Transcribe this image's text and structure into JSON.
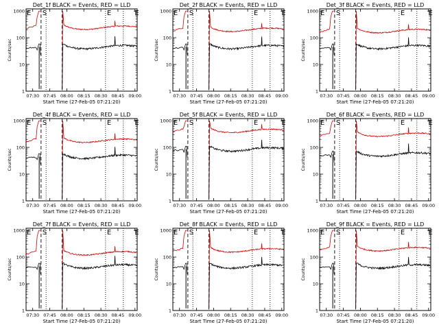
{
  "chart_data": [
    {
      "type": "line",
      "title": "Det_1f BLACK = Events, RED = LLD",
      "ylabel": "Counts/sec",
      "xlabel": "Start Time (27-Feb-05 07:21:20)",
      "x_ticks": [
        "07:30",
        "07:45",
        "08:00",
        "08:15",
        "08:30",
        "08:45",
        "09:00"
      ],
      "y_ticks": [
        "1",
        "10",
        "100",
        "1000"
      ],
      "yscale": "log",
      "ylim": [
        1,
        1200
      ],
      "markers": [
        "E",
        "S",
        "E",
        "E"
      ],
      "series": [
        {
          "color": "#cc0000",
          "level_lld": 240
        },
        {
          "color": "#000000",
          "level_events": 45
        }
      ]
    },
    {
      "type": "line",
      "title": "Det_2f BLACK = Events, RED = LLD",
      "ylabel": "Counts/sec",
      "xlabel": "Start Time (27-Feb-05 07:21:20)",
      "x_ticks": [
        "07:30",
        "07:45",
        "08:00",
        "08:15",
        "08:30",
        "08:45",
        "09:00"
      ],
      "y_ticks": [
        "1",
        "10",
        "100",
        "1000"
      ],
      "yscale": "log",
      "ylim": [
        1,
        1200
      ],
      "markers": [
        "E",
        "S",
        "E",
        "E"
      ],
      "series": [
        {
          "color": "#cc0000",
          "level_lld": 200
        },
        {
          "color": "#000000",
          "level_events": 45
        }
      ]
    },
    {
      "type": "line",
      "title": "Det_3f BLACK = Events, RED = LLD",
      "ylabel": "Counts/sec",
      "xlabel": "Start Time (27-Feb-05 07:21:20)",
      "x_ticks": [
        "07:30",
        "07:45",
        "08:00",
        "08:15",
        "08:30",
        "08:45",
        "09:00"
      ],
      "y_ticks": [
        "1",
        "10",
        "100",
        "1000"
      ],
      "yscale": "log",
      "ylim": [
        1,
        1200
      ],
      "markers": [
        "E",
        "S",
        "E",
        "E"
      ],
      "series": [
        {
          "color": "#cc0000",
          "level_lld": 180
        },
        {
          "color": "#000000",
          "level_events": 45
        }
      ]
    },
    {
      "type": "line",
      "title": "Det_4f BLACK = Events, RED = LLD",
      "ylabel": "Counts/sec",
      "xlabel": "Start Time (27-Feb-05 07:21:20)",
      "x_ticks": [
        "07:30",
        "07:45",
        "08:00",
        "08:15",
        "08:30",
        "08:45",
        "09:00"
      ],
      "y_ticks": [
        "1",
        "10",
        "100",
        "1000"
      ],
      "yscale": "log",
      "ylim": [
        1,
        1200
      ],
      "markers": [
        "E",
        "S",
        "E",
        "E"
      ],
      "series": [
        {
          "color": "#cc0000",
          "level_lld": 180
        },
        {
          "color": "#000000",
          "level_events": 45
        }
      ]
    },
    {
      "type": "line",
      "title": "Det_5f BLACK = Events, RED = LLD",
      "ylabel": "Counts/sec",
      "xlabel": "Start Time (27-Feb-05 07:21:20)",
      "x_ticks": [
        "07:30",
        "07:45",
        "08:00",
        "08:15",
        "08:30",
        "08:45",
        "09:00"
      ],
      "y_ticks": [
        "1",
        "10",
        "100",
        "1000"
      ],
      "yscale": "log",
      "ylim": [
        1,
        1200
      ],
      "markers": [
        "E",
        "S",
        "E",
        "E"
      ],
      "series": [
        {
          "color": "#cc0000",
          "level_lld": 420
        },
        {
          "color": "#000000",
          "level_events": 85
        }
      ]
    },
    {
      "type": "line",
      "title": "Det_6f BLACK = Events, RED = LLD",
      "ylabel": "Counts/sec",
      "xlabel": "Start Time (27-Feb-05 07:21:20)",
      "x_ticks": [
        "07:30",
        "07:45",
        "08:00",
        "08:15",
        "08:30",
        "08:45",
        "09:00"
      ],
      "y_ticks": [
        "1",
        "10",
        "100",
        "1000"
      ],
      "yscale": "log",
      "ylim": [
        1,
        1200
      ],
      "markers": [
        "E",
        "S",
        "E",
        "E"
      ],
      "series": [
        {
          "color": "#cc0000",
          "level_lld": 300
        },
        {
          "color": "#000000",
          "level_events": 55
        }
      ]
    },
    {
      "type": "line",
      "title": "Det_7f BLACK = Events, RED = LLD",
      "ylabel": "Counts/sec",
      "xlabel": "Start Time (27-Feb-05 07:21:20)",
      "x_ticks": [
        "07:30",
        "07:45",
        "08:00",
        "08:15",
        "08:30",
        "08:45",
        "09:00"
      ],
      "y_ticks": [
        "1",
        "10",
        "100",
        "1000"
      ],
      "yscale": "log",
      "ylim": [
        1,
        1200
      ],
      "markers": [
        "E",
        "S",
        "E",
        "E"
      ],
      "series": [
        {
          "color": "#cc0000",
          "level_lld": 140
        },
        {
          "color": "#000000",
          "level_events": 45
        }
      ]
    },
    {
      "type": "line",
      "title": "Det_8f BLACK = Events, RED = LLD",
      "ylabel": "Counts/sec",
      "xlabel": "Start Time (27-Feb-05 07:21:20)",
      "x_ticks": [
        "07:30",
        "07:45",
        "08:00",
        "08:15",
        "08:30",
        "08:45",
        "09:00"
      ],
      "y_ticks": [
        "1",
        "10",
        "100",
        "1000"
      ],
      "yscale": "log",
      "ylim": [
        1,
        1200
      ],
      "markers": [
        "E",
        "S",
        "E",
        "E"
      ],
      "series": [
        {
          "color": "#cc0000",
          "level_lld": 180
        },
        {
          "color": "#000000",
          "level_events": 45
        }
      ]
    },
    {
      "type": "line",
      "title": "Det_9f BLACK = Events, RED = LLD",
      "ylabel": "Counts/sec",
      "xlabel": "Start Time (27-Feb-05 07:21:20)",
      "x_ticks": [
        "07:30",
        "07:45",
        "08:00",
        "08:15",
        "08:30",
        "08:45",
        "09:00"
      ],
      "y_ticks": [
        "1",
        "10",
        "100",
        "1000"
      ],
      "yscale": "log",
      "ylim": [
        1,
        1200
      ],
      "markers": [
        "E",
        "S",
        "E",
        "E"
      ],
      "series": [
        {
          "color": "#cc0000",
          "level_lld": 200
        },
        {
          "color": "#000000",
          "level_events": 45
        }
      ]
    }
  ]
}
